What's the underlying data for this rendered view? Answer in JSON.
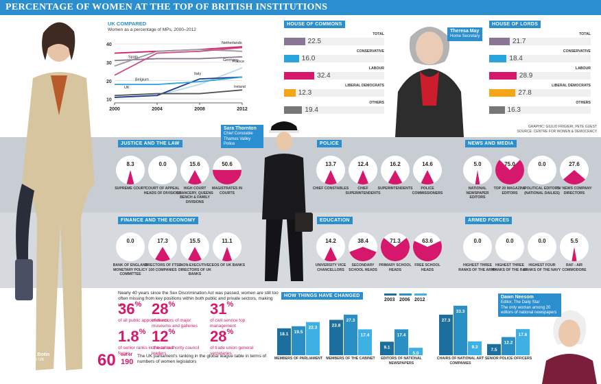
{
  "header": {
    "title": "PERCENTAGE OF WOMEN AT THE TOP OF BRITISH INSTITUTIONS"
  },
  "colors": {
    "accent": "#2b8ecf",
    "magenta": "#d6186c",
    "lilac": "#8b7595",
    "blue": "#2ba3dc",
    "orange": "#f5a516",
    "grey": "#777777",
    "navy": "#1b3b8a",
    "darkgreen": "#2c6e49"
  },
  "people": [
    {
      "name": "Ana Patricia Botín",
      "role": "CEO Santander UK"
    },
    {
      "name": "Theresa May",
      "role": "Home Secretary"
    },
    {
      "name": "Sara Thornton",
      "role": "Chief Constable Thames Valley Police"
    },
    {
      "name": "Dawn Neesom",
      "role": "Editor, The Daily Star",
      "note": "The only woman among 20 editors of national newspapers"
    }
  ],
  "credits": {
    "graphic": "GRAPHIC: GIULIO FRIGIERI, PETE GUEST",
    "source": "SOURCE: CENTRE FOR WOMEN & DEMOCRACY"
  },
  "chart_data": [
    {
      "type": "line",
      "title": "UK COMPARED",
      "subtitle": "Women as a percentage of MPs, 2000–2012",
      "x_ticks": [
        "2000",
        "2004",
        "2008",
        "2012"
      ],
      "y_ticks": [
        10,
        20,
        30,
        40
      ],
      "ylim": [
        8,
        43
      ],
      "series": [
        {
          "name": "Netherlands",
          "color": "#d6186c",
          "x": [
            2000,
            2004,
            2008,
            2012
          ],
          "y": [
            35,
            36,
            37,
            38.5
          ]
        },
        {
          "name": "Germany",
          "color": "#8b7595",
          "x": [
            2000,
            2004,
            2008,
            2012
          ],
          "y": [
            31,
            32,
            32,
            33
          ]
        },
        {
          "name": "Spain",
          "color": "#9a9a9a",
          "x": [
            2000,
            2004,
            2008,
            2012
          ],
          "y": [
            28,
            36,
            37,
            36
          ]
        },
        {
          "name": "Belgium",
          "color": "#c94f87",
          "x": [
            2000,
            2004,
            2008,
            2012
          ],
          "y": [
            23,
            35,
            36,
            38
          ]
        },
        {
          "name": "France",
          "color": "#b7d9ef",
          "x": [
            2000,
            2004,
            2008,
            2012
          ],
          "y": [
            11,
            12,
            18,
            27
          ]
        },
        {
          "name": "Italy",
          "color": "#1b3b8a",
          "x": [
            2000,
            2004,
            2008,
            2012
          ],
          "y": [
            11,
            12,
            21,
            22
          ]
        },
        {
          "name": "UK",
          "color": "#2ba3dc",
          "x": [
            2000,
            2004,
            2008,
            2012
          ],
          "y": [
            18,
            18,
            19.5,
            22
          ]
        },
        {
          "name": "Ireland",
          "color": "#555555",
          "x": [
            2000,
            2004,
            2008,
            2012
          ],
          "y": [
            12,
            13,
            13,
            15
          ]
        }
      ]
    },
    {
      "type": "bar",
      "title": "HOUSE OF COMMONS",
      "orientation": "horizontal",
      "categories": [
        "TOTAL",
        "CONSERVATIVE",
        "LABOUR",
        "LIBERAL DEMOCRATS",
        "OTHERS"
      ],
      "values": [
        22.5,
        16.0,
        32.4,
        12.3,
        19.4
      ],
      "labels": [
        "22.5",
        "16.0",
        "32.4",
        "12.3",
        "19.4"
      ],
      "colors": [
        "#8b7595",
        "#2ba3dc",
        "#d6186c",
        "#f5a516",
        "#777777"
      ]
    },
    {
      "type": "bar",
      "title": "HOUSE OF LORDS",
      "orientation": "horizontal",
      "categories": [
        "TOTAL",
        "CONSERVATIVE",
        "LABOUR",
        "LIBERAL DEMOCRATS",
        "OTHERS"
      ],
      "values": [
        21.7,
        18.4,
        28.9,
        27.8,
        16.3
      ],
      "labels": [
        "21.7",
        "18.4",
        "28.9",
        "27.8",
        "16.3"
      ],
      "colors": [
        "#8b7595",
        "#2ba3dc",
        "#d6186c",
        "#f5a516",
        "#777777"
      ]
    },
    {
      "type": "pie",
      "title": "JUSTICE AND THE LAW",
      "categories": [
        "SUPREME COURT",
        "COURT OF APPEAL HEADS OF DIVISIONS",
        "HIGH COURT CHANCERY, QUEENS BENCH & FAMILY DIVISIONS",
        "MAGISTRATES IN COURTS"
      ],
      "values": [
        8.3,
        0.0,
        15.6,
        50.6
      ],
      "labels": [
        "8.3",
        "0.0",
        "15.6",
        "50.6"
      ]
    },
    {
      "type": "pie",
      "title": "POLICE",
      "categories": [
        "CHIEF CONSTABLES",
        "CHIEF SUPERINTENDENTS",
        "SUPERINTENDENTS",
        "POLICE COMMISSIONERS"
      ],
      "values": [
        13.7,
        12.4,
        16.2,
        14.6
      ],
      "labels": [
        "13.7",
        "12.4",
        "16.2",
        "14.6"
      ]
    },
    {
      "type": "pie",
      "title": "NEWS AND MEDIA",
      "categories": [
        "NATIONAL NEWSPAPER EDITORS",
        "TOP 20 MAGAZINE EDITORS",
        "POLITICAL EDITORS (NATIONAL DAILIES)",
        "TV NEWS COMPANY DIRECTORS"
      ],
      "values": [
        5.0,
        75.0,
        0.0,
        27.6
      ],
      "labels": [
        "5.0",
        "75.0",
        "0.0",
        "27.6"
      ]
    },
    {
      "type": "pie",
      "title": "FINANCE AND THE ECONOMY",
      "categories": [
        "BANK OF ENGLAND MONETARY POLICY COMMITTEE",
        "DIRECTORS OF FTSE 100 COMPANIES",
        "NON-EXECUTIVE DIRECTORS OF UK BANKS",
        "CEOS OF UK BANKS"
      ],
      "values": [
        0.0,
        17.3,
        15.5,
        11.1
      ],
      "labels": [
        "0.0",
        "17.3",
        "15.5",
        "11.1"
      ]
    },
    {
      "type": "pie",
      "title": "EDUCATION",
      "categories": [
        "UNIVERSITY VICE CHANCELLORS",
        "SECONDARY SCHOOL HEADS",
        "PRIMARY SCHOOL HEADS",
        "FREE SCHOOL HEADS"
      ],
      "values": [
        14.2,
        38.4,
        71.3,
        63.6
      ],
      "labels": [
        "14.2",
        "38.4",
        "71.3",
        "63.6"
      ]
    },
    {
      "type": "pie",
      "title": "ARMED FORCES",
      "categories": [
        "HIGHEST THREE RANKS OF THE ARMY",
        "HIGHEST THREE RANKS OF THE RAF",
        "HIGHEST FOUR RANKS OF THE NAVY",
        "RAF - AIR COMMODORE"
      ],
      "values": [
        0.0,
        0.0,
        0.0,
        5.5
      ],
      "labels": [
        "0.0",
        "0.0",
        "0.0",
        "5.5"
      ]
    },
    {
      "type": "bar",
      "title": "HOW THINGS HAVE CHANGED",
      "categories": [
        "MEMBERS OF PARLIAMENT",
        "MEMBERS OF THE CABINET",
        "EDITORS OF NATIONAL NEWSPAPERS",
        "CHAIRS OF NATIONAL ART COMPANIES",
        "SENIOR POLICE OFFICERS"
      ],
      "series": [
        {
          "name": "2003",
          "color": "#1c6f9c",
          "values": [
            18.1,
            23.8,
            9.1,
            27.3,
            7.5
          ]
        },
        {
          "name": "2006",
          "color": "#2a8fc4",
          "values": [
            19.5,
            27.3,
            17.4,
            33.3,
            12.2
          ]
        },
        {
          "name": "2012",
          "color": "#3fb0e3",
          "values": [
            22.3,
            17.4,
            5.0,
            9.3,
            17.6
          ]
        }
      ],
      "labels": [
        [
          "18.1",
          "19.5",
          "22.3"
        ],
        [
          "23.8",
          "27.3",
          "17.4"
        ],
        [
          "9.1",
          "17.4",
          "5.0"
        ],
        [
          "27.3",
          "33.3",
          "9.3"
        ],
        [
          "7.5",
          "12.2",
          "17.6"
        ]
      ],
      "legend": [
        "2003",
        "2006",
        "2012"
      ]
    }
  ],
  "intro": "Nearly 40 years since the Sex Discrimination Act was passed, women are still too often missing from key positions within both public and private sectors, making up:",
  "stats": [
    {
      "value": "36",
      "unit": "%",
      "text": "of all public appointments"
    },
    {
      "value": "28",
      "unit": "%",
      "text": "of directors of major museums and galleries"
    },
    {
      "value": "31",
      "unit": "%",
      "text": "of civil service top management"
    },
    {
      "value": "1.8",
      "unit": "%",
      "text": "of senior ranks in the armed forces"
    },
    {
      "value": "12",
      "unit": "%",
      "text": "of local authority council leaders"
    },
    {
      "value": "28",
      "unit": "%",
      "text": "of trade union general secretaries"
    }
  ],
  "ranking": {
    "rank": "60",
    "out_of": "out of",
    "total": "190",
    "text": "The UK parliament's ranking in the global league table in terms of numbers of women legislators"
  }
}
